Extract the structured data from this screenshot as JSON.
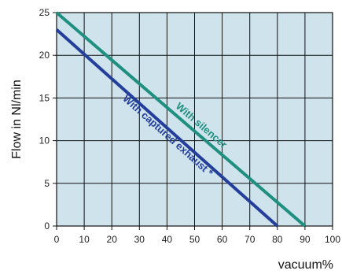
{
  "chart_data": {
    "type": "line",
    "title": "",
    "xlabel": "vacuum%",
    "ylabel": "Flow in Nl/min",
    "xlim": [
      0,
      100
    ],
    "ylim": [
      0,
      25
    ],
    "x_ticks": [
      "0",
      "10",
      "20",
      "30",
      "40",
      "50",
      "60",
      "70",
      "80",
      "90",
      "100"
    ],
    "y_ticks": [
      "0",
      "5",
      "10",
      "15",
      "20",
      "25"
    ],
    "grid": true,
    "plot_background": "#cfe3ec",
    "grid_color": "#111111",
    "series": [
      {
        "name": "With silencer",
        "color": "#1f8f7f",
        "points": [
          [
            0,
            25
          ],
          [
            90,
            0
          ]
        ]
      },
      {
        "name": "With captured exhaust *",
        "color": "#233f9b",
        "points": [
          [
            0,
            23
          ],
          [
            80,
            0
          ]
        ]
      }
    ]
  }
}
